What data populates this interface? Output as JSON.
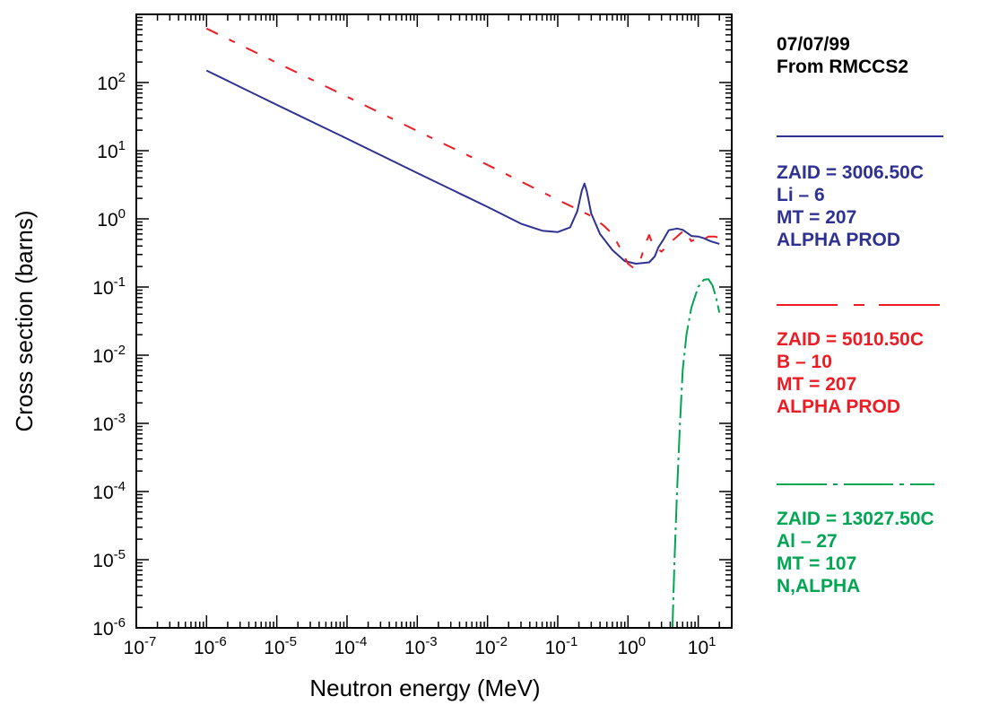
{
  "header": {
    "date": "07/07/99",
    "source": "From RMCCS2"
  },
  "chart_data": {
    "type": "line",
    "xlabel": "Neutron energy (MeV)",
    "ylabel": "Cross section (barns)",
    "xscale": "log",
    "yscale": "log",
    "xlim": [
      1e-07,
      30
    ],
    "ylim": [
      1e-06,
      1000
    ],
    "xticks": [
      {
        "value": 1e-07,
        "base": "10",
        "exp": "-7"
      },
      {
        "value": 1e-06,
        "base": "10",
        "exp": "-6"
      },
      {
        "value": 1e-05,
        "base": "10",
        "exp": "-5"
      },
      {
        "value": 0.0001,
        "base": "10",
        "exp": "-4"
      },
      {
        "value": 0.001,
        "base": "10",
        "exp": "-3"
      },
      {
        "value": 0.01,
        "base": "10",
        "exp": "-2"
      },
      {
        "value": 0.1,
        "base": "10",
        "exp": "-1"
      },
      {
        "value": 1,
        "base": "10",
        "exp": "0"
      },
      {
        "value": 10,
        "base": "10",
        "exp": "1"
      }
    ],
    "yticks": [
      {
        "value": 1e-06,
        "base": "10",
        "exp": "-6"
      },
      {
        "value": 1e-05,
        "base": "10",
        "exp": "-5"
      },
      {
        "value": 0.0001,
        "base": "10",
        "exp": "-4"
      },
      {
        "value": 0.001,
        "base": "10",
        "exp": "-3"
      },
      {
        "value": 0.01,
        "base": "10",
        "exp": "-2"
      },
      {
        "value": 0.1,
        "base": "10",
        "exp": "-1"
      },
      {
        "value": 1,
        "base": "10",
        "exp": "0"
      },
      {
        "value": 10,
        "base": "10",
        "exp": "1"
      },
      {
        "value": 100,
        "base": "10",
        "exp": "2"
      }
    ],
    "grid": false,
    "legend_position": "right",
    "series": [
      {
        "color": "#2e3192",
        "dash": "solid",
        "legend": [
          "ZAID = 3006.50C",
          "Li – 6",
          "MT = 207",
          "ALPHA PROD"
        ],
        "points": [
          [
            1e-06,
            150
          ],
          [
            1e-05,
            47
          ],
          [
            0.0001,
            15
          ],
          [
            0.001,
            4.7
          ],
          [
            0.01,
            1.5
          ],
          [
            0.03,
            0.85
          ],
          [
            0.06,
            0.67
          ],
          [
            0.1,
            0.64
          ],
          [
            0.15,
            0.75
          ],
          [
            0.19,
            1.3
          ],
          [
            0.22,
            2.6
          ],
          [
            0.24,
            3.3
          ],
          [
            0.26,
            2.5
          ],
          [
            0.3,
            1.2
          ],
          [
            0.4,
            0.6
          ],
          [
            0.6,
            0.35
          ],
          [
            0.9,
            0.24
          ],
          [
            1.3,
            0.22
          ],
          [
            2.0,
            0.23
          ],
          [
            2.4,
            0.28
          ],
          [
            2.7,
            0.38
          ],
          [
            3.2,
            0.5
          ],
          [
            3.8,
            0.68
          ],
          [
            5,
            0.72
          ],
          [
            6,
            0.69
          ],
          [
            7,
            0.62
          ],
          [
            8,
            0.56
          ],
          [
            10,
            0.55
          ],
          [
            12,
            0.52
          ],
          [
            15,
            0.47
          ],
          [
            20,
            0.43
          ]
        ]
      },
      {
        "color": "#ed1c24",
        "dash": "14 14 7 14",
        "legend": [
          "ZAID = 5010.50C",
          "B – 10",
          "MT = 207",
          "ALPHA PROD"
        ],
        "points": [
          [
            1e-06,
            620
          ],
          [
            1e-05,
            195
          ],
          [
            0.0001,
            62
          ],
          [
            0.001,
            19.5
          ],
          [
            0.01,
            6.2
          ],
          [
            0.1,
            1.9
          ],
          [
            0.2,
            1.35
          ],
          [
            0.3,
            1.1
          ],
          [
            0.45,
            0.8
          ],
          [
            0.6,
            0.6
          ],
          [
            0.8,
            0.35
          ],
          [
            1.0,
            0.22
          ],
          [
            1.2,
            0.19
          ],
          [
            1.5,
            0.25
          ],
          [
            1.8,
            0.45
          ],
          [
            2.0,
            0.58
          ],
          [
            2.3,
            0.4
          ],
          [
            3,
            0.33
          ],
          [
            4,
            0.45
          ],
          [
            5,
            0.55
          ],
          [
            6,
            0.65
          ],
          [
            6.5,
            0.68
          ],
          [
            7,
            0.58
          ],
          [
            8,
            0.47
          ],
          [
            9,
            0.5
          ],
          [
            10,
            0.53
          ],
          [
            12,
            0.5
          ],
          [
            14,
            0.55
          ],
          [
            17,
            0.55
          ],
          [
            20,
            0.53
          ]
        ]
      },
      {
        "color": "#00a651",
        "dash": "26 5 3 5",
        "legend": [
          "ZAID = 13027.50C",
          "Al – 27",
          "MT = 107",
          "N,ALPHA"
        ],
        "points": [
          [
            4.3,
            1e-06
          ],
          [
            4.6,
            1e-05
          ],
          [
            5,
            0.0001
          ],
          [
            5.5,
            0.001
          ],
          [
            6,
            0.006
          ],
          [
            6.8,
            0.02
          ],
          [
            8,
            0.05
          ],
          [
            10,
            0.1
          ],
          [
            12,
            0.128
          ],
          [
            14,
            0.13
          ],
          [
            16,
            0.105
          ],
          [
            18,
            0.07
          ],
          [
            20,
            0.042
          ]
        ]
      }
    ]
  }
}
